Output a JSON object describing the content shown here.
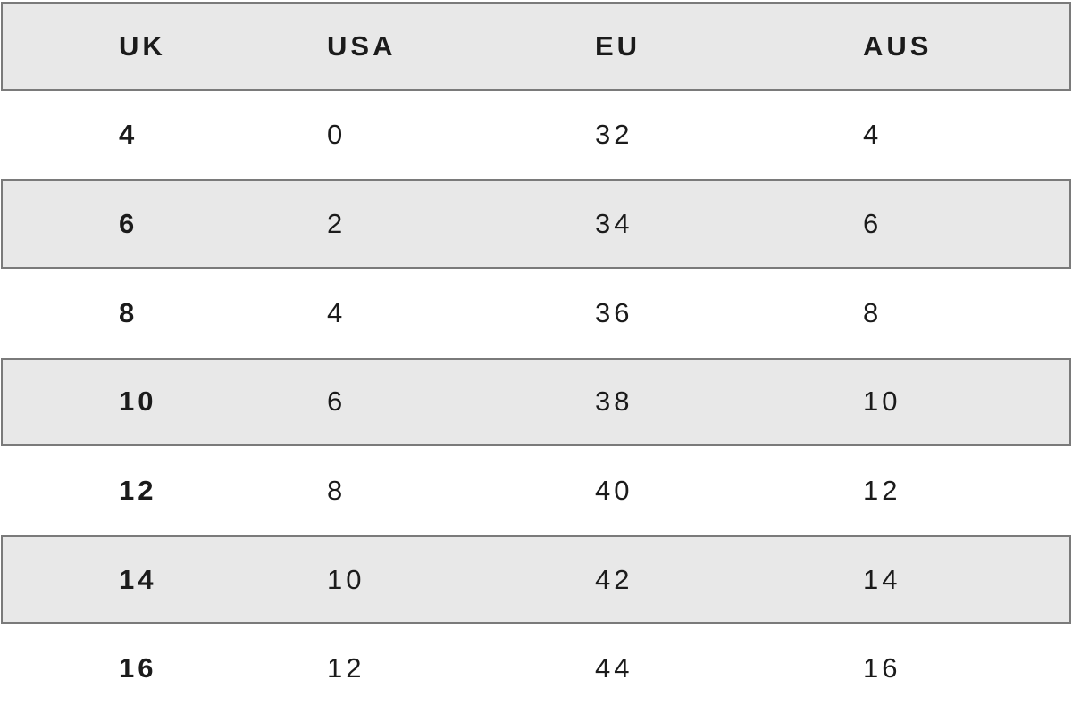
{
  "chart_data": {
    "type": "table",
    "columns": [
      "UK",
      "USA",
      "EU",
      "AUS"
    ],
    "rows": [
      [
        "4",
        "0",
        "32",
        "4"
      ],
      [
        "6",
        "2",
        "34",
        "6"
      ],
      [
        "8",
        "4",
        "36",
        "8"
      ],
      [
        "10",
        "6",
        "38",
        "10"
      ],
      [
        "12",
        "8",
        "40",
        "12"
      ],
      [
        "14",
        "10",
        "42",
        "14"
      ],
      [
        "16",
        "12",
        "44",
        "16"
      ]
    ],
    "layout": {
      "header_position": "top",
      "striped": true,
      "shading": "header shaded; data rows alternate white / shaded starting with white",
      "bordered_rows": "shaded rows only",
      "first_column_bold": true,
      "grid": "no vertical cell dividers"
    }
  },
  "colors": {
    "shaded_row_bg": "#e8e8e8",
    "row_border": "#7a7a7a",
    "text": "#1b1b1b",
    "background": "#ffffff"
  }
}
